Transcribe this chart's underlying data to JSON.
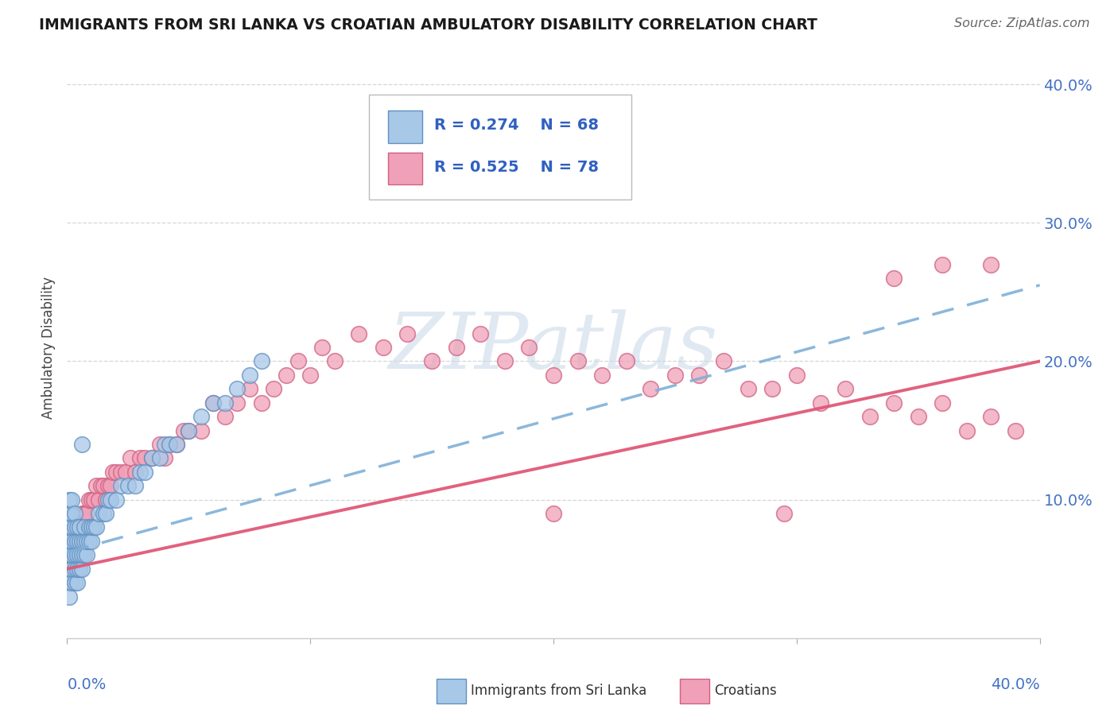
{
  "title": "IMMIGRANTS FROM SRI LANKA VS CROATIAN AMBULATORY DISABILITY CORRELATION CHART",
  "source": "Source: ZipAtlas.com",
  "ylabel": "Ambulatory Disability",
  "legend_r1": "R = 0.274",
  "legend_n1": "N = 68",
  "legend_r2": "R = 0.525",
  "legend_n2": "N = 78",
  "color_srilanka_fill": "#A8C8E8",
  "color_srilanka_edge": "#6090C0",
  "color_croatian_fill": "#F0A0B8",
  "color_croatian_edge": "#D06080",
  "color_line_srilanka": "#80B0D8",
  "color_line_croatian": "#E05878",
  "watermark_color": "#C8D8E8",
  "background_color": "#FFFFFF",
  "xlim": [
    0.0,
    0.4
  ],
  "ylim": [
    0.0,
    0.42
  ],
  "sri_lanka_x": [
    0.001,
    0.001,
    0.001,
    0.001,
    0.001,
    0.001,
    0.001,
    0.001,
    0.002,
    0.002,
    0.002,
    0.002,
    0.002,
    0.002,
    0.002,
    0.003,
    0.003,
    0.003,
    0.003,
    0.003,
    0.003,
    0.004,
    0.004,
    0.004,
    0.004,
    0.004,
    0.005,
    0.005,
    0.005,
    0.005,
    0.006,
    0.006,
    0.006,
    0.006,
    0.007,
    0.007,
    0.007,
    0.008,
    0.008,
    0.009,
    0.009,
    0.01,
    0.01,
    0.011,
    0.012,
    0.013,
    0.015,
    0.016,
    0.017,
    0.018,
    0.02,
    0.022,
    0.025,
    0.028,
    0.03,
    0.032,
    0.035,
    0.038,
    0.04,
    0.042,
    0.045,
    0.05,
    0.055,
    0.06,
    0.065,
    0.07,
    0.075,
    0.08
  ],
  "sri_lanka_y": [
    0.04,
    0.05,
    0.06,
    0.07,
    0.08,
    0.09,
    0.1,
    0.03,
    0.04,
    0.05,
    0.06,
    0.07,
    0.08,
    0.09,
    0.1,
    0.04,
    0.05,
    0.06,
    0.07,
    0.08,
    0.09,
    0.04,
    0.05,
    0.06,
    0.07,
    0.08,
    0.05,
    0.06,
    0.07,
    0.08,
    0.05,
    0.06,
    0.07,
    0.14,
    0.06,
    0.07,
    0.08,
    0.06,
    0.07,
    0.07,
    0.08,
    0.07,
    0.08,
    0.08,
    0.08,
    0.09,
    0.09,
    0.09,
    0.1,
    0.1,
    0.1,
    0.11,
    0.11,
    0.11,
    0.12,
    0.12,
    0.13,
    0.13,
    0.14,
    0.14,
    0.14,
    0.15,
    0.16,
    0.17,
    0.17,
    0.18,
    0.19,
    0.2
  ],
  "croatian_x": [
    0.001,
    0.002,
    0.003,
    0.004,
    0.005,
    0.006,
    0.007,
    0.008,
    0.009,
    0.01,
    0.011,
    0.012,
    0.013,
    0.014,
    0.015,
    0.016,
    0.017,
    0.018,
    0.019,
    0.02,
    0.022,
    0.024,
    0.026,
    0.028,
    0.03,
    0.032,
    0.035,
    0.038,
    0.04,
    0.042,
    0.045,
    0.048,
    0.05,
    0.055,
    0.06,
    0.065,
    0.07,
    0.075,
    0.08,
    0.085,
    0.09,
    0.095,
    0.1,
    0.105,
    0.11,
    0.12,
    0.13,
    0.14,
    0.15,
    0.16,
    0.17,
    0.18,
    0.19,
    0.2,
    0.21,
    0.22,
    0.23,
    0.24,
    0.25,
    0.26,
    0.27,
    0.28,
    0.29,
    0.3,
    0.31,
    0.32,
    0.33,
    0.34,
    0.35,
    0.36,
    0.37,
    0.38,
    0.39,
    0.38,
    0.36,
    0.34,
    0.295,
    0.2
  ],
  "croatian_y": [
    0.06,
    0.07,
    0.07,
    0.08,
    0.08,
    0.09,
    0.09,
    0.09,
    0.1,
    0.1,
    0.1,
    0.11,
    0.1,
    0.11,
    0.11,
    0.1,
    0.11,
    0.11,
    0.12,
    0.12,
    0.12,
    0.12,
    0.13,
    0.12,
    0.13,
    0.13,
    0.13,
    0.14,
    0.13,
    0.14,
    0.14,
    0.15,
    0.15,
    0.15,
    0.17,
    0.16,
    0.17,
    0.18,
    0.17,
    0.18,
    0.19,
    0.2,
    0.19,
    0.21,
    0.2,
    0.22,
    0.21,
    0.22,
    0.2,
    0.21,
    0.22,
    0.2,
    0.21,
    0.19,
    0.2,
    0.19,
    0.2,
    0.18,
    0.19,
    0.19,
    0.2,
    0.18,
    0.18,
    0.19,
    0.17,
    0.18,
    0.16,
    0.17,
    0.16,
    0.17,
    0.15,
    0.16,
    0.15,
    0.27,
    0.27,
    0.26,
    0.09,
    0.09
  ]
}
